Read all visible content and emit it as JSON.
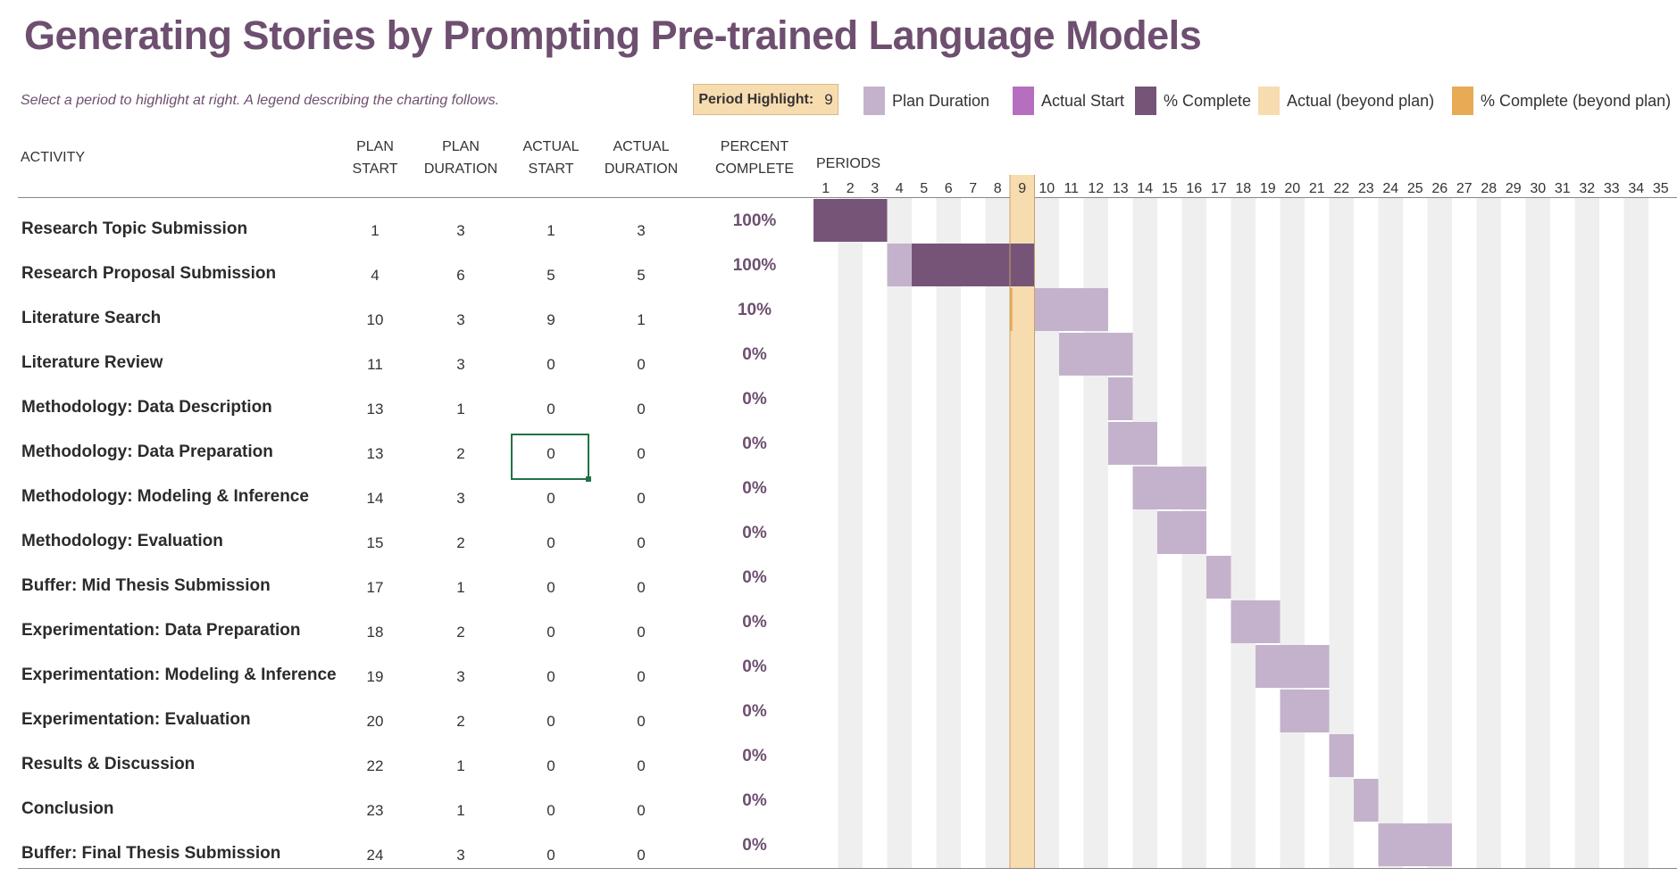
{
  "title": "Generating Stories by Prompting Pre-trained Language Models",
  "subtitle": "Select a period to highlight at right.  A legend describing the charting follows.",
  "period_highlight": {
    "label": "Period Highlight:",
    "value": "9"
  },
  "legend": [
    {
      "label": "Plan Duration",
      "color": "#c4b2cc"
    },
    {
      "label": "Actual Start",
      "color": "#b56fbe"
    },
    {
      "label": "% Complete",
      "color": "#765478"
    },
    {
      "label": "Actual (beyond plan)",
      "color": "#f7dcb0"
    },
    {
      "label": "% Complete (beyond plan)",
      "color": "#e8aa55"
    }
  ],
  "headers": {
    "activity": "ACTIVITY",
    "plan_start": [
      "PLAN",
      "START"
    ],
    "plan_duration": [
      "PLAN",
      "DURATION"
    ],
    "actual_start": [
      "ACTUAL",
      "START"
    ],
    "actual_duration": [
      "ACTUAL",
      "DURATION"
    ],
    "percent_complete": [
      "PERCENT",
      "COMPLETE"
    ],
    "periods": "PERIODS"
  },
  "periods": [
    "1",
    "2",
    "3",
    "4",
    "5",
    "6",
    "7",
    "8",
    "9",
    "10",
    "11",
    "12",
    "13",
    "14",
    "15",
    "16",
    "17",
    "18",
    "19",
    "20",
    "21",
    "22",
    "23",
    "24",
    "25",
    "26",
    "27",
    "28",
    "29",
    "30",
    "31",
    "32",
    "33",
    "34",
    "35"
  ],
  "highlight_period": 9,
  "rows": [
    {
      "activity": "Research Topic Submission",
      "plan_start": "1",
      "plan_duration": "3",
      "actual_start": "1",
      "actual_duration": "3",
      "percent": "100%"
    },
    {
      "activity": "Research Proposal Submission",
      "plan_start": "4",
      "plan_duration": "6",
      "actual_start": "5",
      "actual_duration": "5",
      "percent": "100%"
    },
    {
      "activity": "Literature Search",
      "plan_start": "10",
      "plan_duration": "3",
      "actual_start": "9",
      "actual_duration": "1",
      "percent": "10%"
    },
    {
      "activity": "Literature Review",
      "plan_start": "11",
      "plan_duration": "3",
      "actual_start": "0",
      "actual_duration": "0",
      "percent": "0%"
    },
    {
      "activity": "Methodology: Data Description",
      "plan_start": "13",
      "plan_duration": "1",
      "actual_start": "0",
      "actual_duration": "0",
      "percent": "0%"
    },
    {
      "activity": "Methodology: Data Preparation",
      "plan_start": "13",
      "plan_duration": "2",
      "actual_start": "0",
      "actual_duration": "0",
      "percent": "0%"
    },
    {
      "activity": "Methodology: Modeling & Inference",
      "plan_start": "14",
      "plan_duration": "3",
      "actual_start": "0",
      "actual_duration": "0",
      "percent": "0%"
    },
    {
      "activity": "Methodology: Evaluation",
      "plan_start": "15",
      "plan_duration": "2",
      "actual_start": "0",
      "actual_duration": "0",
      "percent": "0%"
    },
    {
      "activity": "Buffer: Mid Thesis Submission",
      "plan_start": "17",
      "plan_duration": "1",
      "actual_start": "0",
      "actual_duration": "0",
      "percent": "0%"
    },
    {
      "activity": "Experimentation: Data Preparation",
      "plan_start": "18",
      "plan_duration": "2",
      "actual_start": "0",
      "actual_duration": "0",
      "percent": "0%"
    },
    {
      "activity": "Experimentation: Modeling & Inference",
      "plan_start": "19",
      "plan_duration": "3",
      "actual_start": "0",
      "actual_duration": "0",
      "percent": "0%"
    },
    {
      "activity": "Experimentation: Evaluation",
      "plan_start": "20",
      "plan_duration": "2",
      "actual_start": "0",
      "actual_duration": "0",
      "percent": "0%"
    },
    {
      "activity": "Results & Discussion",
      "plan_start": "22",
      "plan_duration": "1",
      "actual_start": "0",
      "actual_duration": "0",
      "percent": "0%"
    },
    {
      "activity": "Conclusion",
      "plan_start": "23",
      "plan_duration": "1",
      "actual_start": "0",
      "actual_duration": "0",
      "percent": "0%"
    },
    {
      "activity": "Buffer: Final Thesis Submission",
      "plan_start": "24",
      "plan_duration": "3",
      "actual_start": "0",
      "actual_duration": "0",
      "percent": "0%"
    }
  ],
  "colors": {
    "accent": "#6e4f70",
    "plan": "#c4b2cc",
    "complete": "#765478",
    "highlight": "#f7dcb0",
    "beyond_complete": "#e8aa55",
    "stripe": "#efefef",
    "selection": "#217346"
  }
}
